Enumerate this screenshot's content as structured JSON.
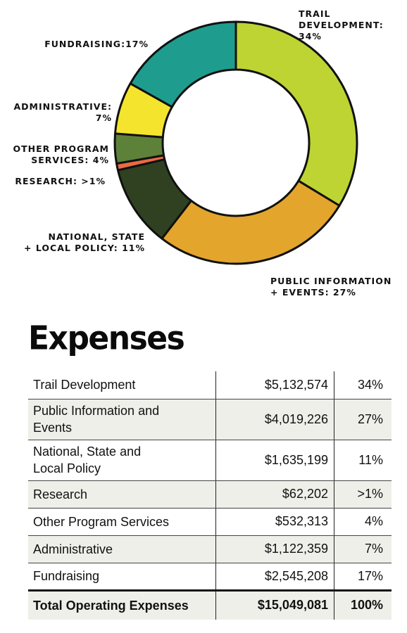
{
  "chart_data": {
    "type": "pie",
    "slices": [
      {
        "label_lines": [
          "TRAIL",
          "DEVELOPMENT:",
          "34%"
        ],
        "value": 34,
        "color": "#bed433"
      },
      {
        "label_lines": [
          "PUBLIC INFORMATION",
          "+ EVENTS: 27%"
        ],
        "value": 27,
        "color": "#e3a52c"
      },
      {
        "label_lines": [
          "NATIONAL, STATE",
          "+ LOCAL POLICY: 11%"
        ],
        "value": 11,
        "color": "#2f4121"
      },
      {
        "label_lines": [
          "RESEARCH: >1%"
        ],
        "value": 0.9,
        "color": "#ec6a43"
      },
      {
        "label_lines": [
          "OTHER PROGRAM",
          "SERVICES: 4%"
        ],
        "value": 4,
        "color": "#5e8139"
      },
      {
        "label_lines": [
          "ADMINISTRATIVE:",
          "7%"
        ],
        "value": 7,
        "color": "#f5e42d"
      },
      {
        "label_lines": [
          "FUNDRAISING:17%"
        ],
        "value": 17,
        "color": "#1e9d8f"
      }
    ]
  },
  "table": {
    "title": "Expenses",
    "rows": [
      {
        "name": "Trail Development",
        "amount": "$5,132,574",
        "pct": "34%"
      },
      {
        "name": "Public Information and Events",
        "amount": "$4,019,226",
        "pct": "27%"
      },
      {
        "name": "National, State and Local Policy",
        "amount": "$1,635,199",
        "pct": "11%"
      },
      {
        "name": "Research",
        "amount": "$62,202",
        "pct": ">1%"
      },
      {
        "name": "Other Program Services",
        "amount": "$532,313",
        "pct": "4%"
      },
      {
        "name": "Administrative",
        "amount": "$1,122,359",
        "pct": "7%"
      },
      {
        "name": "Fundraising",
        "amount": "$2,545,208",
        "pct": "17%"
      }
    ],
    "total": {
      "name": "Total Operating Expenses",
      "amount": "$15,049,081",
      "pct": "100%"
    }
  }
}
